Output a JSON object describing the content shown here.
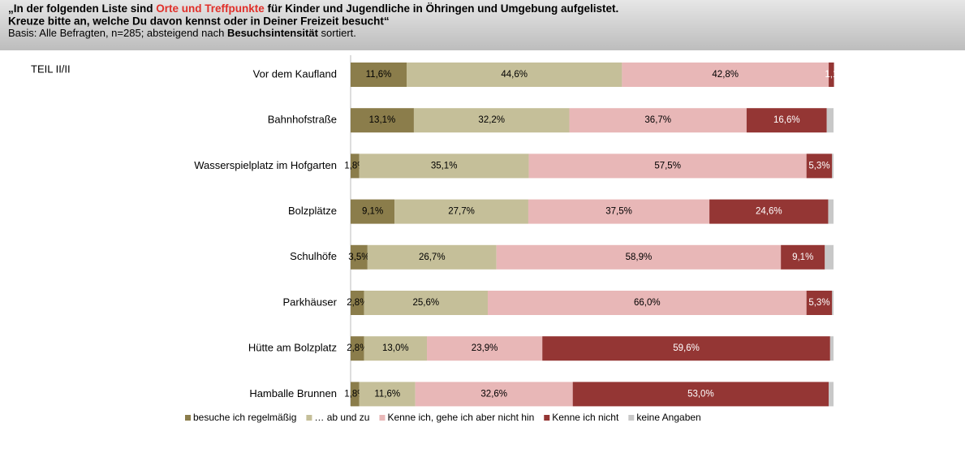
{
  "header": {
    "title_start": "„In der folgenden Liste sind ",
    "title_highlight": "Orte und Treffpunkte",
    "title_end": " für Kinder und Jugendliche in Öhringen und Umgebung aufgelistet.",
    "title_line2": "Kreuze bitte an, welche Du davon kennst oder in Deiner Freizeit besucht“",
    "basis_start": "Basis: Alle Befragten, n=285; absteigend nach ",
    "basis_bold": "Besuchsintensität",
    "basis_end": " sortiert.",
    "part": "TEIL II/II"
  },
  "chart_data": {
    "type": "stacked-barh",
    "categories": [
      "Vor dem Kaufland",
      "Bahnhofstraße",
      "Wasserspielplatz im Hofgarten",
      "Bolzplätze",
      "Schulhöfe",
      "Parkhäuser",
      "Hütte am Bolzplatz",
      "Hamballe Brunnen"
    ],
    "xlim": [
      0,
      100
    ],
    "series": [
      {
        "name": "besuche ich regelmäßig",
        "color": "#8b7d4b",
        "values": [
          11.6,
          13.1,
          1.8,
          9.1,
          3.5,
          2.8,
          2.8,
          1.8
        ],
        "value_labels": [
          "11,6%",
          "13,1%",
          "1,8%",
          "9,1%",
          "3,5%",
          "2,8%",
          "2,8%",
          "1,8%"
        ]
      },
      {
        "name": "… ab und zu",
        "color": "#c5bf99",
        "values": [
          44.6,
          32.2,
          35.1,
          27.7,
          26.7,
          25.6,
          13.0,
          11.6
        ],
        "value_labels": [
          "44,6%",
          "32,2%",
          "35,1%",
          "27,7%",
          "26,7%",
          "25,6%",
          "13,0%",
          "11,6%"
        ]
      },
      {
        "name": "Kenne ich, gehe ich aber nicht hin",
        "color": "#e8b7b7",
        "values": [
          42.8,
          36.7,
          57.5,
          37.5,
          58.9,
          66.0,
          23.9,
          32.6
        ],
        "value_labels": [
          "42,8%",
          "36,7%",
          "57,5%",
          "37,5%",
          "58,9%",
          "66,0%",
          "23,9%",
          "32,6%"
        ]
      },
      {
        "name": "Kenne ich nicht",
        "color": "#943634",
        "values": [
          1.1,
          16.6,
          5.3,
          24.6,
          9.1,
          5.3,
          59.6,
          53.0
        ],
        "value_labels": [
          "1,1",
          "16,6%",
          "5,3%",
          "24,6%",
          "9,1%",
          "5,3%",
          "59,6%",
          "53,0%"
        ]
      },
      {
        "name": "keine Angaben",
        "color": "#c8c8c8",
        "values": [
          0,
          1.4,
          0.3,
          1.1,
          1.8,
          0.3,
          0.7,
          1.0
        ],
        "value_labels": [
          null,
          null,
          null,
          null,
          null,
          null,
          null,
          null
        ]
      }
    ]
  }
}
